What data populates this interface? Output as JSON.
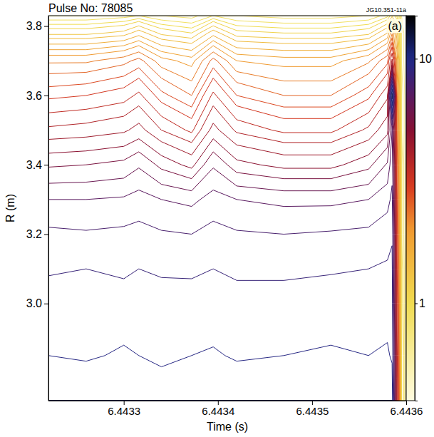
{
  "chart_data": {
    "type": "contour",
    "title": "Pulse No: 78085",
    "code": "JG10.351-11a",
    "panel_label": "(a)",
    "x_label": "Time (s)",
    "y_label": "R (m)",
    "x": [
      6.44322,
      6.44326,
      6.4433,
      6.443316,
      6.44334,
      6.443372,
      6.443395,
      6.44342,
      6.44347,
      6.44352,
      6.44356,
      6.44358,
      6.443585,
      6.44359,
      6.443595,
      6.4436
    ],
    "y": [
      2.72,
      2.85,
      3.0,
      3.1,
      3.2,
      3.3,
      3.4,
      3.5,
      3.6,
      3.7,
      3.78,
      3.83
    ],
    "z": [
      [
        10,
        10.2,
        9.8,
        10,
        10.1,
        9.9,
        10,
        10.2,
        9.8,
        10,
        10.1,
        10.2,
        10,
        4,
        0.9,
        0.6
      ],
      [
        9.5,
        9.4,
        9.6,
        9.5,
        9.3,
        9.5,
        9.6,
        9.4,
        9.5,
        9.6,
        9.5,
        9.6,
        9.4,
        3.8,
        0.9,
        0.6
      ],
      [
        9,
        8.8,
        9.1,
        9,
        8.9,
        9.1,
        9,
        8.8,
        9,
        9.1,
        9,
        9.2,
        9,
        3.5,
        0.85,
        0.6
      ],
      [
        8.5,
        8.6,
        8.4,
        8.6,
        8.5,
        8.4,
        8.6,
        8.5,
        8.4,
        8.5,
        8.6,
        8.7,
        8.8,
        3.3,
        0.85,
        0.6
      ],
      [
        8,
        7.9,
        8,
        8.1,
        7.9,
        7.8,
        8.1,
        7.9,
        7.8,
        7.9,
        8,
        8.3,
        8.5,
        3.1,
        0.8,
        0.6
      ],
      [
        7,
        7,
        7.1,
        7.3,
        7,
        6.8,
        7.3,
        7,
        6.8,
        6.8,
        7,
        7.5,
        8,
        3,
        0.8,
        0.6
      ],
      [
        5.5,
        5.6,
        5.8,
        6.2,
        5.4,
        4.8,
        6.2,
        5.2,
        4.8,
        4.8,
        5.4,
        6.4,
        7.5,
        2.8,
        0.8,
        0.6
      ],
      [
        4,
        4.1,
        4.3,
        4.6,
        3.9,
        3.4,
        4.6,
        3.8,
        3.4,
        3.4,
        4,
        4.8,
        7,
        2.6,
        0.75,
        0.6
      ],
      [
        3,
        3.1,
        3.3,
        3.6,
        2.9,
        2.5,
        3.6,
        2.8,
        2.5,
        2.5,
        3,
        3.8,
        12,
        2.4,
        0.75,
        0.6
      ],
      [
        2.2,
        2.2,
        2.4,
        2.6,
        2.1,
        1.9,
        2.6,
        2,
        1.9,
        1.9,
        2.2,
        2.7,
        4,
        2,
        0.7,
        0.6
      ],
      [
        1.2,
        1.2,
        1.3,
        1.5,
        1.2,
        1.1,
        1.5,
        1.15,
        1.1,
        1.1,
        1.2,
        1.6,
        2.2,
        1.5,
        0.7,
        0.6
      ],
      [
        0.8,
        0.8,
        0.85,
        0.9,
        0.8,
        0.75,
        0.9,
        0.8,
        0.75,
        0.75,
        0.8,
        0.95,
        1.2,
        1,
        0.65,
        0.6
      ]
    ],
    "contour_levels": [
      0.65,
      0.7,
      0.75,
      0.8,
      0.9,
      1,
      1.1,
      1.25,
      1.4,
      1.6,
      1.8,
      2,
      2.25,
      2.5,
      2.8,
      3.1,
      3.5,
      3.9,
      4.4,
      5,
      5.6,
      6.3,
      7,
      7.8,
      8.6,
      9.5,
      10.5,
      11.5
    ],
    "xlim": [
      6.44322,
      6.4436
    ],
    "xticks": [
      6.4433,
      6.4434,
      6.4435,
      6.4436
    ],
    "ylim": [
      2.72,
      3.83
    ],
    "yticks": [
      {
        "value": 3,
        "label": "3.0"
      },
      {
        "value": 3.2,
        "label": "3.2"
      },
      {
        "value": 3.4,
        "label": "3.4"
      },
      {
        "value": 3.6,
        "label": "3.6"
      },
      {
        "value": 3.8,
        "label": "3.8"
      }
    ],
    "colorbar_lim": [
      0.4,
      15
    ],
    "colorbar_ticks": [
      1,
      10
    ]
  }
}
